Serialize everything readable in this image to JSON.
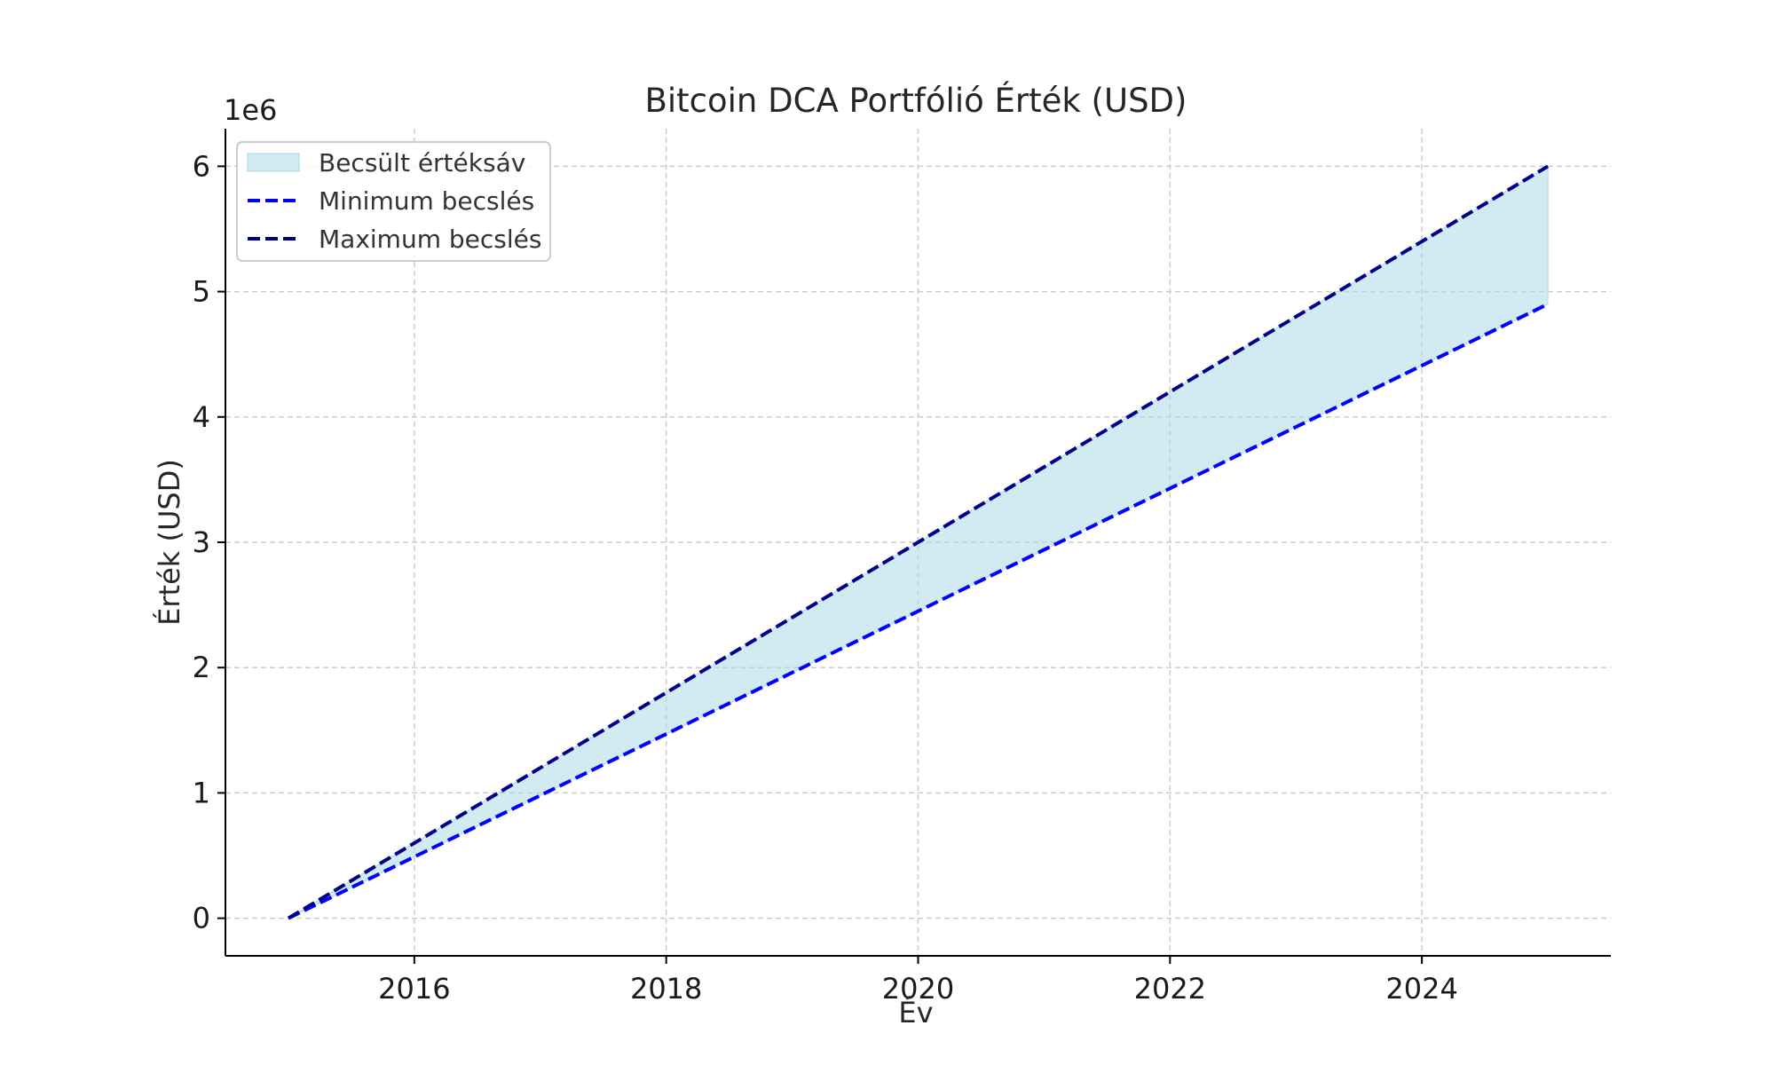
{
  "chart_data": {
    "type": "line",
    "title": "Bitcoin DCA Portfólió Érték (USD)",
    "xlabel": "Év",
    "ylabel": "Érték (USD)",
    "y_offset_label": "1e6",
    "xlim": [
      2014.5,
      2025.5
    ],
    "ylim": [
      -0.3,
      6.3
    ],
    "x_ticks": [
      2016,
      2018,
      2020,
      2022,
      2024
    ],
    "y_ticks": [
      0,
      1,
      2,
      3,
      4,
      5,
      6
    ],
    "grid": true,
    "legend_position": "top-left",
    "x": [
      2015,
      2016,
      2017,
      2018,
      2019,
      2020,
      2021,
      2022,
      2023,
      2024,
      2025
    ],
    "series": [
      {
        "name": "Minimum becslés",
        "style": "dashed",
        "color": "#0000ff",
        "values": [
          0,
          0.49,
          0.98,
          1.47,
          1.96,
          2.45,
          2.94,
          3.43,
          3.92,
          4.41,
          4.9
        ]
      },
      {
        "name": "Maximum becslés",
        "style": "dashed",
        "color": "#00008b",
        "values": [
          0,
          0.6,
          1.2,
          1.8,
          2.4,
          3.0,
          3.6,
          4.2,
          4.8,
          5.4,
          6.0
        ]
      }
    ],
    "band": {
      "name": "Becsült értéksáv",
      "color": "#add8e6",
      "between": [
        "Minimum becslés",
        "Maximum becslés"
      ]
    }
  }
}
